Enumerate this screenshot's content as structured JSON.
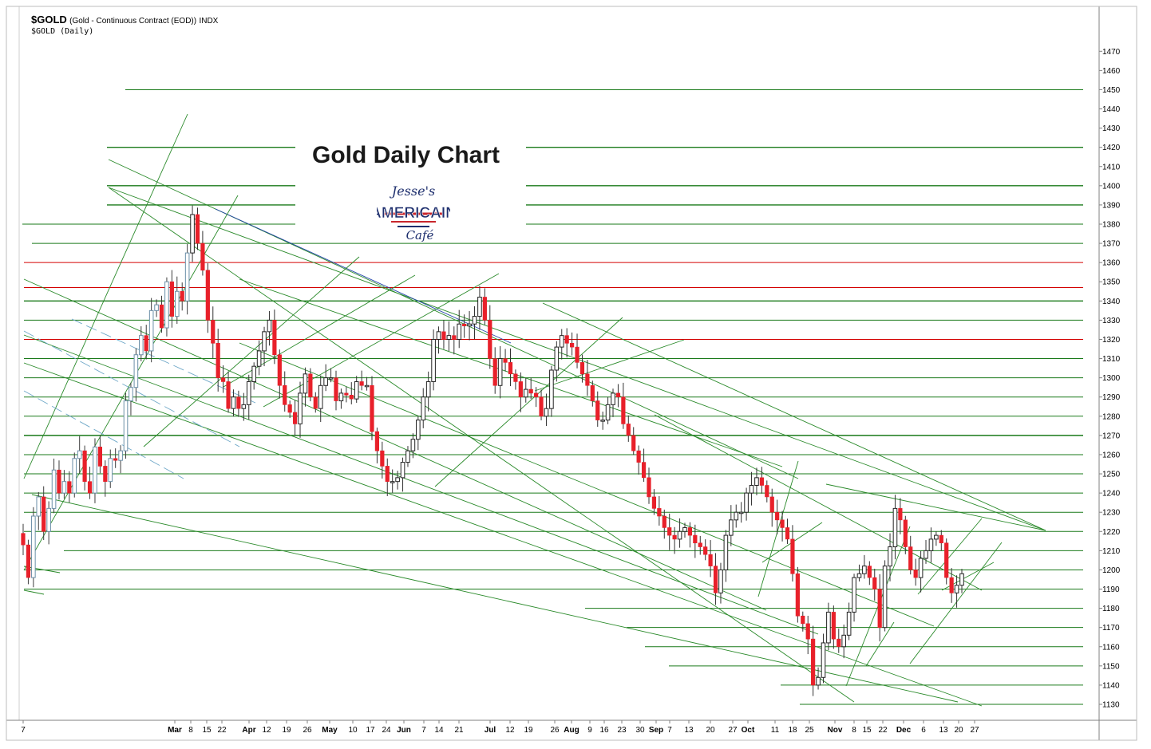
{
  "header": {
    "symbol": "$GOLD",
    "description": "(Gold - Continuous Contract (EOD))",
    "exchange": "INDX",
    "subtitle": "$GOLD (Daily)"
  },
  "overlay_title": "Gold Daily Chart",
  "logo": {
    "line1": "Jesse's",
    "line2": "AMERICAIN",
    "line3": "Café"
  },
  "colors": {
    "up_body": "#ffffff",
    "down_body": "#e8202a",
    "early_candle": "#6b8fa8",
    "grid_green": "#1a7a1a",
    "red_level": "#d40000",
    "blue_trend": "#2244aa",
    "axis": "#808080"
  },
  "chart_data": {
    "type": "candlestick",
    "title": "Gold Daily Chart",
    "series_name": "$GOLD (Daily)",
    "y_axis": {
      "side": "right",
      "min": 1125,
      "max": 1475,
      "ticks": [
        1130,
        1140,
        1150,
        1160,
        1170,
        1180,
        1190,
        1200,
        1210,
        1220,
        1230,
        1240,
        1250,
        1260,
        1270,
        1280,
        1290,
        1300,
        1310,
        1320,
        1330,
        1340,
        1350,
        1360,
        1370,
        1380,
        1390,
        1400,
        1410,
        1420,
        1430,
        1440,
        1450,
        1460,
        1470
      ]
    },
    "x_axis": {
      "labels": [
        {
          "t": "7",
          "month": false
        },
        {
          "t": "Mar",
          "month": true
        },
        {
          "t": "8",
          "month": false
        },
        {
          "t": "15",
          "month": false
        },
        {
          "t": "22",
          "month": false
        },
        {
          "t": "Apr",
          "month": true
        },
        {
          "t": "12",
          "month": false
        },
        {
          "t": "19",
          "month": false
        },
        {
          "t": "26",
          "month": false
        },
        {
          "t": "May",
          "month": true
        },
        {
          "t": "10",
          "month": false
        },
        {
          "t": "17",
          "month": false
        },
        {
          "t": "24",
          "month": false
        },
        {
          "t": "Jun",
          "month": true
        },
        {
          "t": "7",
          "month": false
        },
        {
          "t": "14",
          "month": false
        },
        {
          "t": "21",
          "month": false
        },
        {
          "t": "Jul",
          "month": true
        },
        {
          "t": "12",
          "month": false
        },
        {
          "t": "19",
          "month": false
        },
        {
          "t": "26",
          "month": false
        },
        {
          "t": "Aug",
          "month": true
        },
        {
          "t": "9",
          "month": false
        },
        {
          "t": "16",
          "month": false
        },
        {
          "t": "23",
          "month": false
        },
        {
          "t": "30",
          "month": false
        },
        {
          "t": "Sep",
          "month": true
        },
        {
          "t": "7",
          "month": false
        },
        {
          "t": "13",
          "month": false
        },
        {
          "t": "20",
          "month": false
        },
        {
          "t": "27",
          "month": false
        },
        {
          "t": "Oct",
          "month": true
        },
        {
          "t": "11",
          "month": false
        },
        {
          "t": "18",
          "month": false
        },
        {
          "t": "25",
          "month": false
        },
        {
          "t": "Nov",
          "month": true
        },
        {
          "t": "8",
          "month": false
        },
        {
          "t": "15",
          "month": false
        },
        {
          "t": "22",
          "month": false
        },
        {
          "t": "Dec",
          "month": true
        },
        {
          "t": "6",
          "month": false
        },
        {
          "t": "13",
          "month": false
        },
        {
          "t": "20",
          "month": false
        },
        {
          "t": "27",
          "month": false
        }
      ]
    },
    "green_levels": [
      1130,
      1140,
      1150,
      1160,
      1170,
      1180,
      1190,
      1200,
      1210,
      1220,
      1230,
      1240,
      1250,
      1260,
      1270,
      1280,
      1290,
      1300,
      1310,
      1330,
      1340,
      1370,
      1380,
      1390,
      1400,
      1420,
      1450
    ],
    "red_levels": [
      1320,
      1347,
      1360
    ],
    "close_path": [
      1213,
      1196,
      1228,
      1238,
      1220,
      1232,
      1252,
      1240,
      1246,
      1240,
      1258,
      1262,
      1246,
      1240,
      1264,
      1254,
      1246,
      1258,
      1257,
      1262,
      1288,
      1295,
      1312,
      1322,
      1314,
      1335,
      1338,
      1326,
      1350,
      1332,
      1345,
      1340,
      1365,
      1385,
      1370,
      1356,
      1330,
      1318,
      1300,
      1298,
      1284,
      1290,
      1284,
      1286,
      1298,
      1306,
      1314,
      1324,
      1330,
      1312,
      1296,
      1286,
      1282,
      1276,
      1292,
      1302,
      1290,
      1284,
      1296,
      1300,
      1300,
      1288,
      1292,
      1291,
      1289,
      1298,
      1296,
      1296,
      1272,
      1262,
      1254,
      1246,
      1246,
      1248,
      1256,
      1262,
      1268,
      1278,
      1290,
      1298,
      1320,
      1324,
      1320,
      1322,
      1320,
      1328,
      1327,
      1328,
      1332,
      1342,
      1330,
      1310,
      1296,
      1310,
      1308,
      1302,
      1298,
      1290,
      1294,
      1292,
      1290,
      1280,
      1284,
      1304,
      1316,
      1322,
      1318,
      1316,
      1308,
      1302,
      1296,
      1288,
      1278,
      1278,
      1286,
      1292,
      1290,
      1276,
      1270,
      1262,
      1256,
      1248,
      1238,
      1232,
      1228,
      1222,
      1218,
      1216,
      1220,
      1222,
      1218,
      1214,
      1212,
      1208,
      1202,
      1188,
      1200,
      1218,
      1226,
      1230,
      1230,
      1240,
      1244,
      1248,
      1244,
      1238,
      1230,
      1226,
      1222,
      1216,
      1198,
      1176,
      1172,
      1164,
      1140,
      1144,
      1162,
      1178,
      1164,
      1160,
      1166,
      1178,
      1196,
      1198,
      1202,
      1196,
      1190,
      1170,
      1202,
      1212,
      1232,
      1226,
      1212,
      1200,
      1196,
      1206,
      1210,
      1216,
      1218,
      1214,
      1196,
      1188,
      1192,
      1198
    ]
  }
}
